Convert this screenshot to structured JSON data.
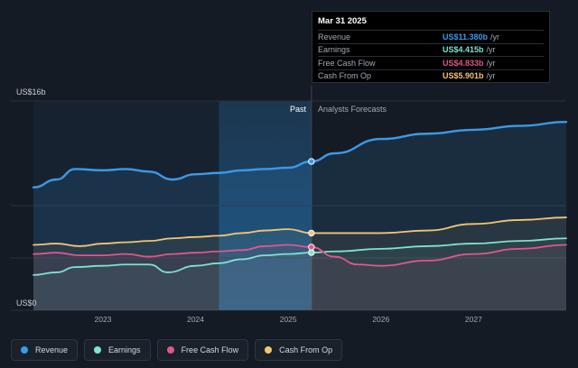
{
  "tooltip": {
    "date": "Mar 31 2025",
    "rows": [
      {
        "name": "Revenue",
        "value": "US$11.380b",
        "unit": "/yr",
        "color": "#3b9ae8"
      },
      {
        "name": "Earnings",
        "value": "US$4.415b",
        "unit": "/yr",
        "color": "#7ee3cf"
      },
      {
        "name": "Free Cash Flow",
        "value": "US$4.833b",
        "unit": "/yr",
        "color": "#e0578a"
      },
      {
        "name": "Cash From Op",
        "value": "US$5.901b",
        "unit": "/yr",
        "color": "#f2c574"
      }
    ]
  },
  "legend": [
    {
      "label": "Revenue",
      "color": "#3b9ae8"
    },
    {
      "label": "Earnings",
      "color": "#7ee3cf"
    },
    {
      "label": "Free Cash Flow",
      "color": "#e0578a"
    },
    {
      "label": "Cash From Op",
      "color": "#f2c574"
    }
  ],
  "chart_data": {
    "type": "line",
    "ylabel_top": "US$16b",
    "ylabel_bottom": "US$0",
    "ylim": [
      0,
      16
    ],
    "xlim": [
      2022.25,
      2028.0
    ],
    "x_ticks": [
      "2023",
      "2024",
      "2025",
      "2026",
      "2027"
    ],
    "x_tick_values": [
      2023,
      2024,
      2025,
      2026,
      2027
    ],
    "past_label": "Past",
    "forecast_label": "Analysts Forecasts",
    "divider_x": 2025.25,
    "highlight_start_x": 2024.25,
    "series": [
      {
        "name": "Revenue",
        "color": "#3b9ae8",
        "x": [
          2022.25,
          2022.5,
          2022.7,
          2023.0,
          2023.25,
          2023.5,
          2023.75,
          2024.0,
          2024.25,
          2024.5,
          2024.75,
          2025.0,
          2025.25,
          2025.5,
          2026.0,
          2026.5,
          2027.0,
          2027.5,
          2028.0
        ],
        "y": [
          9.4,
          10.0,
          10.8,
          10.7,
          10.8,
          10.6,
          10.0,
          10.4,
          10.5,
          10.7,
          10.8,
          10.9,
          11.38,
          12.0,
          13.1,
          13.5,
          13.8,
          14.1,
          14.4
        ]
      },
      {
        "name": "Earnings",
        "color": "#7ee3cf",
        "x": [
          2022.25,
          2022.5,
          2022.7,
          2023.0,
          2023.25,
          2023.5,
          2023.7,
          2024.0,
          2024.25,
          2024.5,
          2024.75,
          2025.0,
          2025.25,
          2025.5,
          2026.0,
          2026.5,
          2027.0,
          2027.5,
          2028.0
        ],
        "y": [
          2.7,
          2.9,
          3.3,
          3.4,
          3.5,
          3.5,
          2.9,
          3.4,
          3.6,
          3.9,
          4.2,
          4.3,
          4.415,
          4.5,
          4.7,
          4.9,
          5.1,
          5.3,
          5.5
        ]
      },
      {
        "name": "Free Cash Flow",
        "color": "#e0578a",
        "x": [
          2022.25,
          2022.5,
          2022.75,
          2023.0,
          2023.25,
          2023.5,
          2023.75,
          2024.0,
          2024.25,
          2024.5,
          2024.75,
          2025.0,
          2025.25,
          2025.5,
          2025.75,
          2026.0,
          2026.5,
          2027.0,
          2027.5,
          2028.0
        ],
        "y": [
          4.3,
          4.4,
          4.2,
          4.2,
          4.3,
          4.1,
          4.3,
          4.4,
          4.5,
          4.6,
          4.9,
          5.0,
          4.833,
          4.1,
          3.5,
          3.4,
          3.8,
          4.3,
          4.7,
          5.0
        ]
      },
      {
        "name": "Cash From Op",
        "color": "#f2c574",
        "x": [
          2022.25,
          2022.5,
          2022.75,
          2023.0,
          2023.25,
          2023.5,
          2023.75,
          2024.0,
          2024.25,
          2024.5,
          2024.75,
          2025.0,
          2025.25,
          2025.5,
          2026.0,
          2026.5,
          2027.0,
          2027.5,
          2028.0
        ],
        "y": [
          5.0,
          5.1,
          4.9,
          5.1,
          5.2,
          5.3,
          5.5,
          5.6,
          5.7,
          5.9,
          6.1,
          6.2,
          5.901,
          5.9,
          5.9,
          6.1,
          6.6,
          6.9,
          7.1
        ]
      }
    ]
  }
}
